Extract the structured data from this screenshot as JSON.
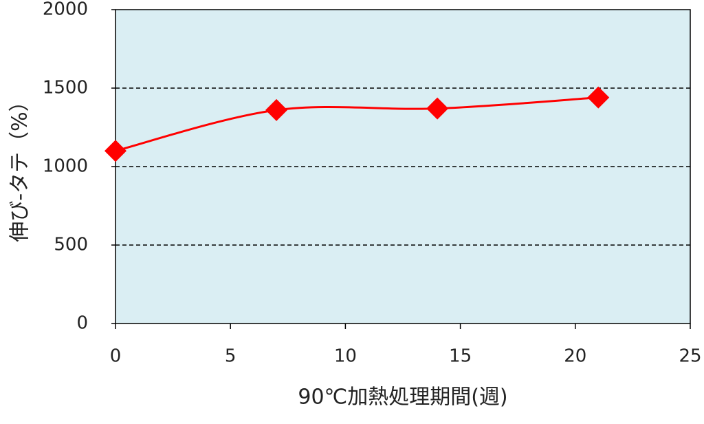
{
  "chart_data": {
    "type": "line",
    "x": [
      0,
      7,
      14,
      21
    ],
    "series": [
      {
        "name": null,
        "color": "#ff0000",
        "values": [
          1100,
          1360,
          1370,
          1440
        ]
      }
    ],
    "xlim": [
      0,
      25
    ],
    "xticks": [
      0,
      5,
      10,
      15,
      20,
      25
    ],
    "ylim": [
      0,
      2000
    ],
    "yticks": [
      0,
      500,
      1000,
      1500,
      2000
    ],
    "xlabel": "90℃加熱処理期間(週)",
    "ylabel": "伸び-タテ（%）",
    "grid": true,
    "background": "#daeef3"
  }
}
